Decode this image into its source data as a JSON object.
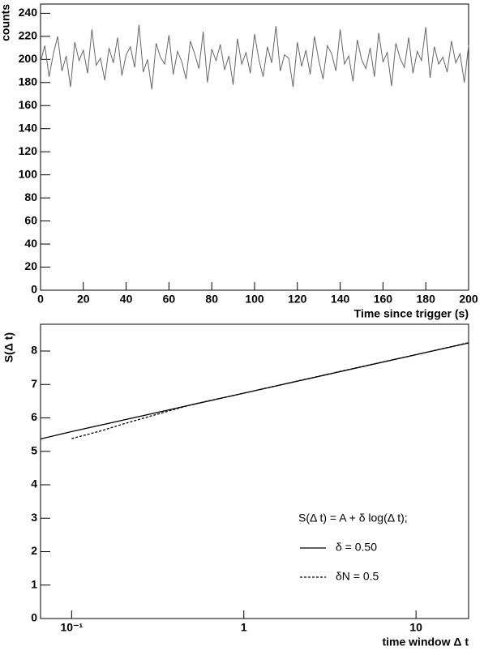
{
  "chart_data": [
    {
      "type": "line",
      "x_label": "Time since trigger (s)",
      "y_label": "counts",
      "xlim": [
        0,
        200
      ],
      "ylim": [
        0,
        248
      ],
      "xticks": [
        0,
        20,
        40,
        60,
        80,
        100,
        120,
        140,
        160,
        180,
        200
      ],
      "yticks": [
        0,
        20,
        40,
        60,
        80,
        100,
        120,
        140,
        160,
        180,
        200,
        220,
        240
      ],
      "x": [
        0,
        2,
        4,
        6,
        8,
        10,
        12,
        14,
        16,
        18,
        20,
        22,
        24,
        26,
        28,
        30,
        32,
        34,
        36,
        38,
        40,
        42,
        44,
        46,
        48,
        50,
        52,
        54,
        56,
        58,
        60,
        62,
        64,
        66,
        68,
        70,
        72,
        74,
        76,
        78,
        80,
        82,
        84,
        86,
        88,
        90,
        92,
        94,
        96,
        98,
        100,
        102,
        104,
        106,
        108,
        110,
        112,
        114,
        116,
        118,
        120,
        122,
        124,
        126,
        128,
        130,
        132,
        134,
        136,
        138,
        140,
        142,
        144,
        146,
        148,
        150,
        152,
        154,
        156,
        158,
        160,
        162,
        164,
        166,
        168,
        170,
        172,
        174,
        176,
        178,
        180,
        182,
        184,
        186,
        188,
        190,
        192,
        194,
        196,
        198,
        200
      ],
      "series": [
        {
          "color": "#666666",
          "linestyle": "solid",
          "values": [
            198,
            212,
            185,
            205,
            220,
            190,
            203,
            176,
            215,
            199,
            208,
            188,
            226,
            195,
            201,
            182,
            210,
            197,
            219,
            186,
            204,
            211,
            193,
            230,
            189,
            200,
            174,
            214,
            202,
            196,
            221,
            187,
            207,
            198,
            183,
            216,
            205,
            192,
            224,
            180,
            209,
            199,
            213,
            191,
            203,
            178,
            218,
            196,
            206,
            188,
            222,
            200,
            185,
            211,
            197,
            229,
            190,
            204,
            201,
            176,
            215,
            194,
            208,
            187,
            220,
            199,
            183,
            212,
            205,
            190,
            226,
            196,
            203,
            181,
            217,
            200,
            192,
            210,
            185,
            223,
            198,
            206,
            177,
            214,
            201,
            193,
            219,
            188,
            207,
            199,
            228,
            184,
            211,
            196,
            202,
            189,
            216,
            197,
            205,
            180,
            212
          ]
        }
      ]
    },
    {
      "type": "line",
      "x_label": "time window  Δ t",
      "y_label": "S(Δ t)",
      "log_x": true,
      "xlim": [
        0.066,
        20.2
      ],
      "ylim": [
        0,
        8.8
      ],
      "xticks": [
        {
          "value": 0.1,
          "label": "10⁻¹"
        },
        1,
        10
      ],
      "yticks": [
        0,
        1,
        2,
        3,
        4,
        5,
        6,
        7,
        8
      ],
      "legend_title": "S(Δ t) = A + δ log(Δ t);",
      "series": [
        {
          "name": "δ = 0.50",
          "color": "#000000",
          "linestyle": "solid",
          "x": [
            0.066,
            0.1,
            1,
            10,
            20.2
          ],
          "values": [
            5.37,
            5.59,
            6.74,
            7.89,
            8.24
          ]
        },
        {
          "name": "δN = 0.5",
          "color": "#000000",
          "linestyle": "dashed",
          "x": [
            0.1,
            0.15,
            0.2,
            0.3,
            0.5,
            1,
            2,
            5,
            10,
            20.2
          ],
          "values": [
            5.38,
            5.62,
            5.82,
            6.08,
            6.4,
            6.74,
            7.09,
            7.55,
            7.89,
            8.25
          ]
        }
      ]
    }
  ]
}
